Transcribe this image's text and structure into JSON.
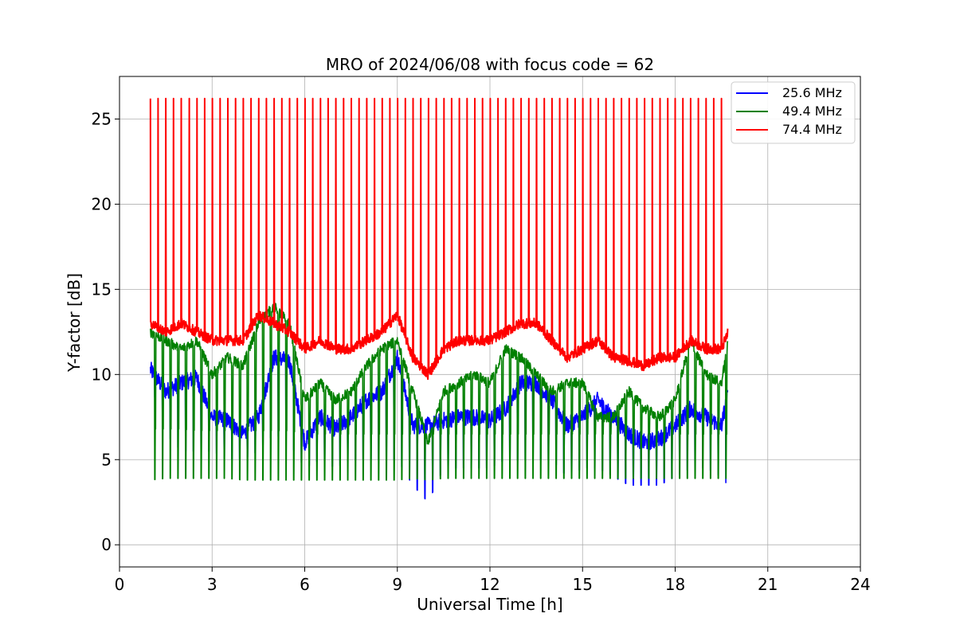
{
  "chart_data": {
    "type": "line",
    "title": "MRO of 2024/06/08 with focus code = 62",
    "xlabel": "Universal Time [h]",
    "ylabel": "Y-factor [dB]",
    "xlim": [
      0,
      24
    ],
    "ylim": [
      -1.3,
      27.5
    ],
    "xticks": [
      0,
      3,
      6,
      9,
      12,
      15,
      18,
      21,
      24
    ],
    "yticks": [
      0,
      5,
      10,
      15,
      20,
      25
    ],
    "grid": true,
    "legend_position": "top-right",
    "spike_interval_h": 0.25,
    "series": [
      {
        "name": "25.6 MHz",
        "color": "#0000ff",
        "x": [
          1.0,
          1.5,
          2.0,
          2.5,
          3.0,
          3.5,
          4.0,
          4.5,
          5.0,
          5.5,
          6.0,
          6.5,
          7.0,
          7.5,
          8.0,
          8.5,
          9.0,
          9.5,
          10.0,
          10.5,
          11.0,
          11.5,
          12.0,
          12.5,
          13.0,
          13.5,
          14.0,
          14.5,
          15.0,
          15.5,
          16.0,
          16.5,
          17.0,
          17.5,
          18.0,
          18.5,
          19.0,
          19.5,
          19.7
        ],
        "baseline": [
          10.3,
          9.0,
          9.5,
          9.8,
          7.5,
          7.3,
          6.5,
          7.5,
          11.0,
          10.8,
          6.0,
          7.5,
          6.8,
          7.5,
          8.5,
          9.0,
          11.0,
          7.0,
          7.0,
          7.3,
          7.5,
          7.5,
          7.3,
          8.0,
          9.5,
          9.5,
          8.5,
          7.0,
          7.5,
          8.5,
          7.5,
          6.5,
          6.0,
          6.2,
          7.0,
          8.0,
          7.5,
          7.0,
          8.8
        ],
        "dips": [
          9.5,
          6.5,
          5.5,
          5.5,
          5.5,
          5.0,
          5.0,
          5.5,
          6.5,
          6.0,
          4.5,
          5.0,
          4.5,
          5.0,
          5.0,
          5.0,
          5.0,
          3.5,
          2.5,
          4.5,
          4.5,
          4.5,
          4.5,
          5.0,
          5.0,
          5.0,
          5.0,
          4.0,
          4.5,
          4.5,
          4.0,
          3.5,
          3.5,
          3.5,
          4.0,
          4.5,
          4.5,
          4.0,
          3.5
        ]
      },
      {
        "name": "49.4 MHz",
        "color": "#008000",
        "x": [
          1.0,
          1.5,
          2.0,
          2.5,
          3.0,
          3.5,
          4.0,
          4.5,
          5.0,
          5.5,
          6.0,
          6.5,
          7.0,
          7.5,
          8.0,
          8.5,
          9.0,
          9.5,
          10.0,
          10.5,
          11.0,
          11.5,
          12.0,
          12.5,
          13.0,
          13.5,
          14.0,
          14.5,
          15.0,
          15.5,
          16.0,
          16.5,
          17.0,
          17.5,
          18.0,
          18.5,
          19.0,
          19.5,
          19.7
        ],
        "baseline": [
          12.5,
          12.0,
          11.5,
          12.0,
          10.0,
          11.0,
          10.5,
          13.0,
          14.0,
          13.0,
          8.5,
          9.5,
          8.5,
          9.0,
          10.5,
          11.5,
          12.0,
          9.0,
          6.0,
          9.0,
          9.5,
          10.0,
          9.5,
          11.5,
          11.0,
          10.0,
          9.0,
          9.5,
          9.5,
          7.5,
          7.5,
          9.0,
          8.0,
          7.5,
          8.5,
          12.0,
          10.0,
          9.5,
          11.7
        ],
        "dips": [
          3.8,
          3.9,
          3.9,
          3.9,
          3.9,
          3.9,
          3.8,
          3.8,
          3.8,
          3.8,
          3.8,
          3.8,
          3.8,
          3.8,
          3.8,
          3.8,
          3.8,
          3.9,
          3.8,
          3.9,
          3.9,
          3.9,
          3.9,
          3.9,
          3.9,
          3.9,
          3.9,
          3.9,
          3.9,
          3.9,
          3.9,
          3.9,
          3.9,
          3.9,
          3.9,
          3.9,
          3.9,
          3.9,
          3.9
        ],
        "highs": [
          6.8,
          6.8,
          6.8,
          6.7,
          6.7,
          6.7,
          6.7,
          6.7,
          6.7,
          6.7,
          6.5,
          6.5,
          6.5,
          6.5,
          6.5,
          6.5,
          6.5,
          6.5,
          6.5,
          6.5,
          6.5,
          6.5,
          6.5,
          6.5,
          6.5,
          6.5,
          6.5,
          6.5,
          6.5,
          6.5,
          6.5,
          6.5,
          6.5,
          6.5,
          6.5,
          6.5,
          6.5,
          6.5,
          6.5
        ]
      },
      {
        "name": "74.4 MHz",
        "color": "#ff0000",
        "x": [
          1.0,
          1.5,
          2.0,
          2.5,
          3.0,
          3.5,
          4.0,
          4.5,
          5.0,
          5.5,
          6.0,
          6.5,
          7.0,
          7.5,
          8.0,
          8.5,
          9.0,
          9.5,
          10.0,
          10.5,
          11.0,
          11.5,
          12.0,
          12.5,
          13.0,
          13.5,
          14.0,
          14.5,
          15.0,
          15.5,
          16.0,
          16.5,
          17.0,
          17.5,
          18.0,
          18.5,
          19.0,
          19.5,
          19.7
        ],
        "baseline": [
          13.0,
          12.5,
          13.0,
          12.5,
          12.0,
          12.0,
          12.0,
          13.5,
          13.0,
          12.5,
          11.5,
          12.0,
          11.5,
          11.5,
          12.0,
          12.5,
          13.5,
          11.0,
          10.0,
          11.5,
          12.0,
          12.0,
          12.0,
          12.5,
          13.0,
          13.0,
          12.0,
          11.0,
          11.5,
          12.0,
          11.0,
          10.8,
          10.5,
          11.0,
          11.0,
          12.0,
          11.5,
          11.5,
          12.4
        ],
        "peak": 26.2
      }
    ]
  }
}
